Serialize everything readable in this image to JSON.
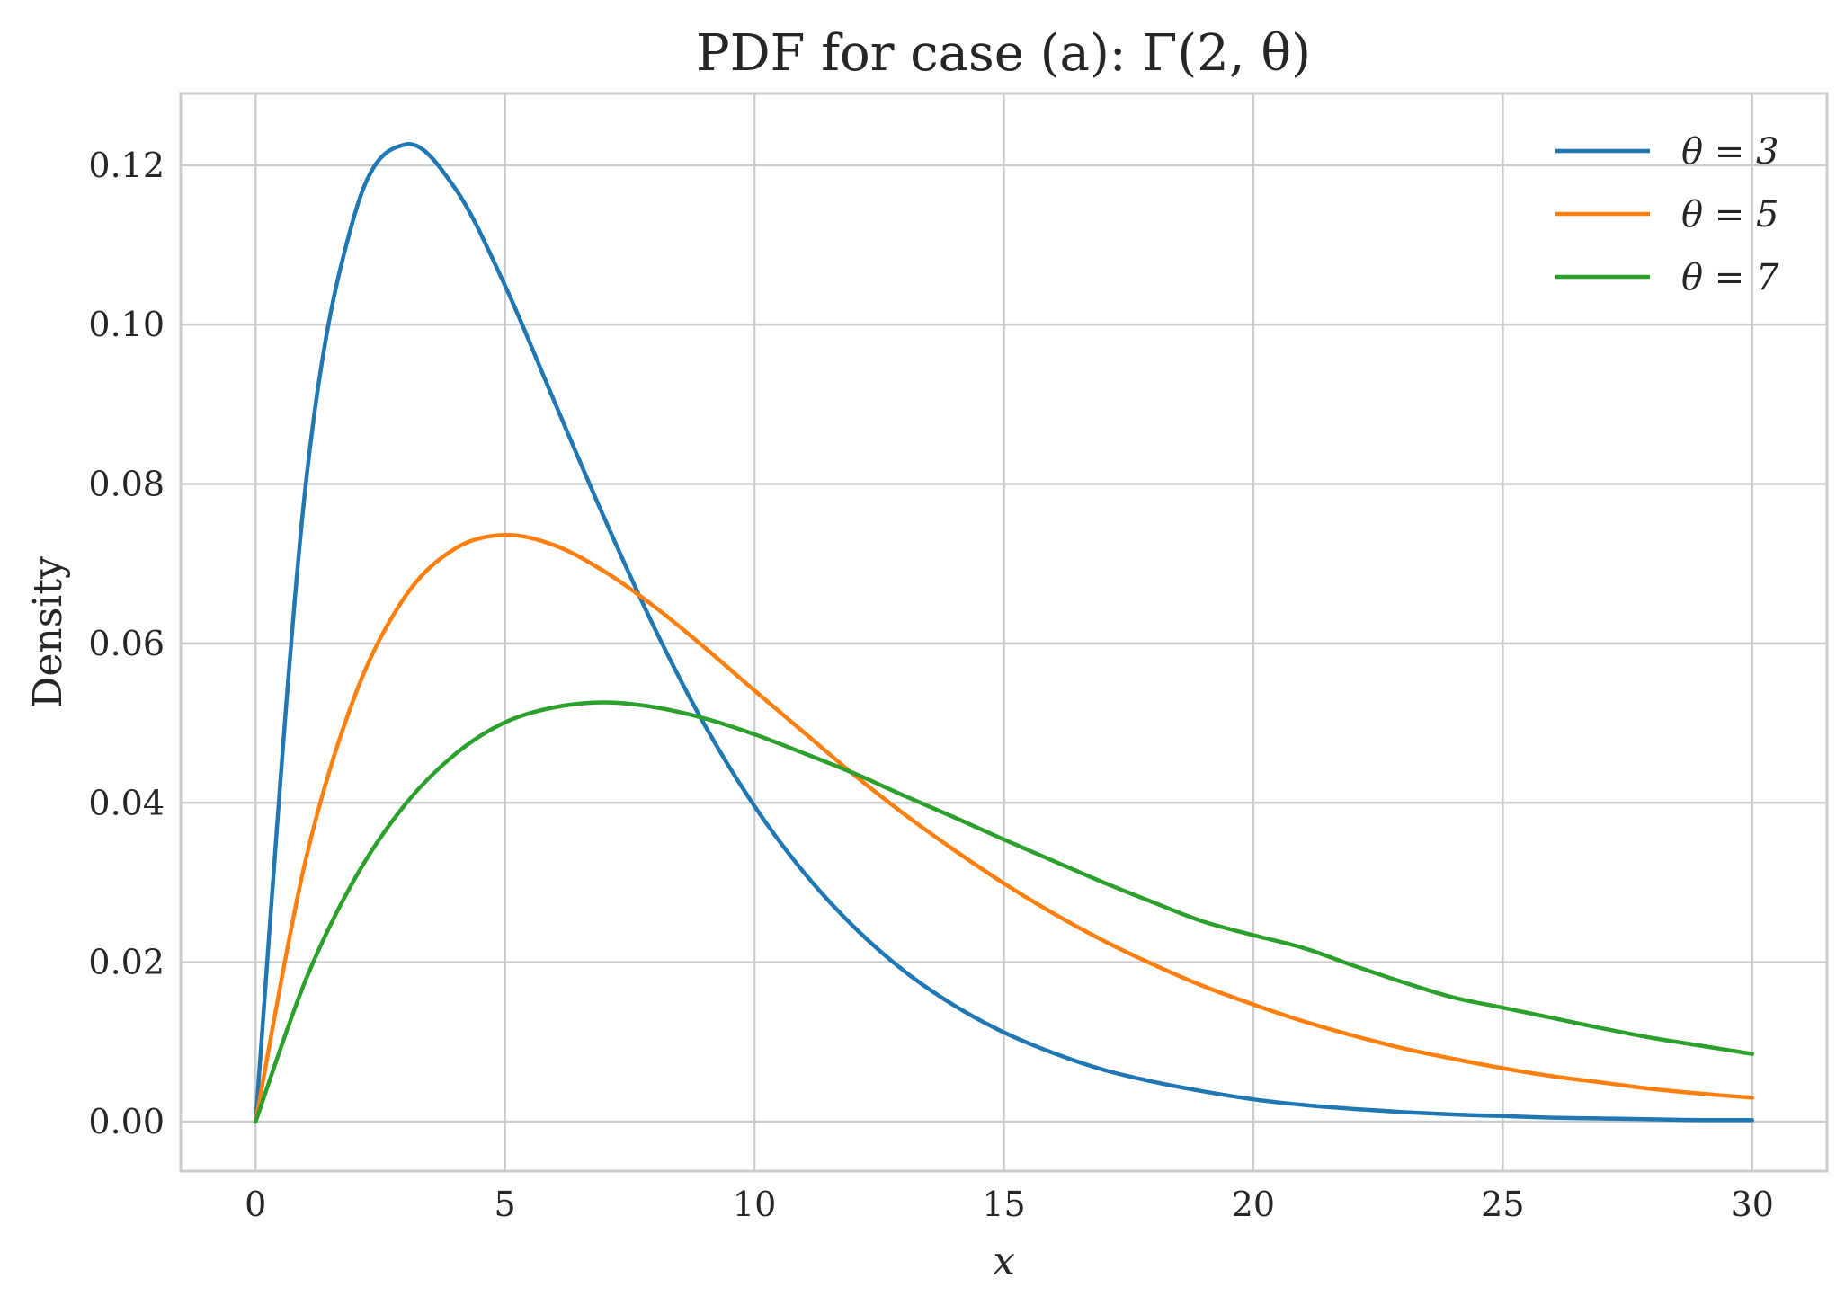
{
  "chart_data": {
    "type": "line",
    "title": "PDF for case (a): Γ(2, θ)",
    "xlabel": "x",
    "ylabel": "Density",
    "xlim": [
      -1.5,
      31.5
    ],
    "ylim": [
      -0.0062,
      0.129
    ],
    "x_ticks": [
      0,
      5,
      10,
      15,
      20,
      25,
      30
    ],
    "x_tick_labels": [
      "0",
      "5",
      "10",
      "15",
      "20",
      "25",
      "30"
    ],
    "y_ticks": [
      0.0,
      0.02,
      0.04,
      0.06,
      0.08,
      0.1,
      0.12
    ],
    "y_tick_labels": [
      "0.00",
      "0.02",
      "0.04",
      "0.06",
      "0.08",
      "0.10",
      "0.12"
    ],
    "grid": true,
    "legend_position": "top-right",
    "x": [
      0,
      1,
      2,
      3,
      4,
      5,
      6,
      7,
      8,
      9,
      10,
      11,
      12,
      13,
      14,
      15,
      16,
      17,
      18,
      19,
      20,
      21,
      22,
      23,
      24,
      25,
      26,
      27,
      28,
      29,
      30
    ],
    "series": [
      {
        "name": "θ = 3",
        "color": "#1f77b4",
        "values": [
          0.0,
          0.0796,
          0.1141,
          0.1226,
          0.1171,
          0.1049,
          0.0902,
          0.0756,
          0.0619,
          0.0498,
          0.0396,
          0.0312,
          0.0244,
          0.0189,
          0.0146,
          0.0112,
          0.0086,
          0.0065,
          0.005,
          0.0038,
          0.0028,
          0.0021,
          0.0016,
          0.0012,
          0.0009,
          0.0007,
          0.0005,
          0.0004,
          0.0003,
          0.0002,
          0.0002
        ]
      },
      {
        "name": "θ = 5",
        "color": "#ff7f0e",
        "values": [
          0.0,
          0.0327,
          0.0536,
          0.0659,
          0.0719,
          0.0736,
          0.0723,
          0.069,
          0.0646,
          0.0595,
          0.0541,
          0.0488,
          0.0435,
          0.0386,
          0.0341,
          0.0299,
          0.0261,
          0.0227,
          0.0197,
          0.017,
          0.0147,
          0.0126,
          0.0108,
          0.0092,
          0.0079,
          0.0067,
          0.0057,
          0.0049,
          0.0041,
          0.0035,
          0.003
        ]
      },
      {
        "name": "θ = 7",
        "color": "#2ca02c",
        "values": [
          0.0,
          0.0177,
          0.0306,
          0.0398,
          0.0461,
          0.0501,
          0.052,
          0.0526,
          0.052,
          0.0506,
          0.0486,
          0.0462,
          0.0437,
          0.0409,
          0.0382,
          0.0354,
          0.0327,
          0.03,
          0.0275,
          0.0251,
          0.0234,
          0.0218,
          0.0196,
          0.0175,
          0.0156,
          0.0143,
          0.013,
          0.0117,
          0.0105,
          0.0095,
          0.0085
        ]
      }
    ]
  }
}
